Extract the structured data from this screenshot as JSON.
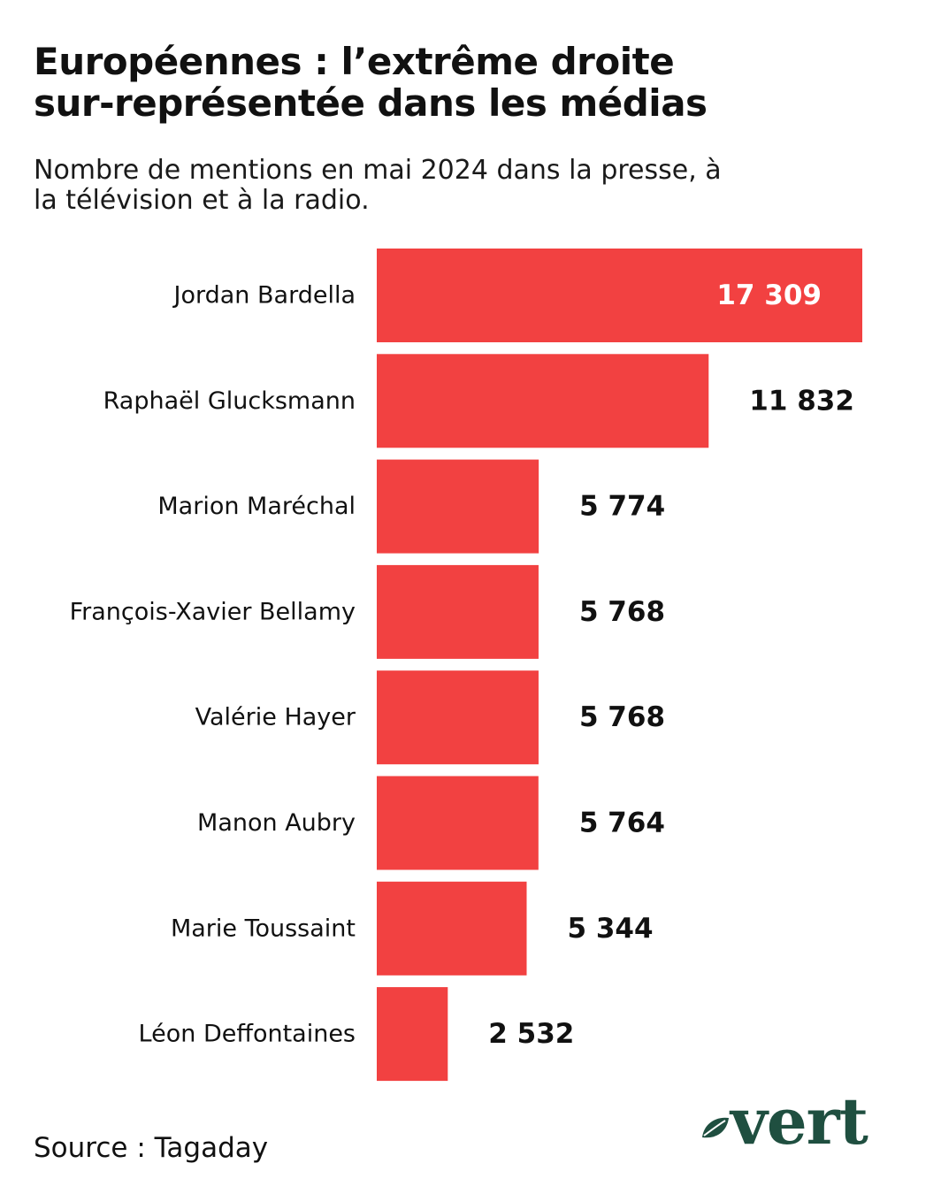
{
  "title_line1": "Européennes : l’extrême droite",
  "title_line2": "sur-représentée dans les médias",
  "subtitle_line1": "Nombre de mentions en mai 2024 dans la presse, à",
  "subtitle_line2": "la télévision et à la radio.",
  "source": "Source : Tagaday",
  "logo": "vert",
  "colors": {
    "bar": "#f24141",
    "logo": "#1f4f40",
    "text": "#111111",
    "label_inside": "#ffffff"
  },
  "chart_data": {
    "type": "bar",
    "orientation": "horizontal",
    "categories": [
      "Jordan Bardella",
      "Raphaël Glucksmann",
      "Marion Maréchal",
      "François-Xavier Bellamy",
      "Valérie Hayer",
      "Manon Aubry",
      "Marie Toussaint",
      "Léon Deffontaines"
    ],
    "values": [
      17309,
      11832,
      5774,
      5768,
      5768,
      5764,
      5344,
      2532
    ],
    "value_labels": [
      "17 309",
      "11 832",
      "5 774",
      "5 768",
      "5 768",
      "5 764",
      "5 344",
      "2 532"
    ],
    "xlim": [
      0,
      17309
    ],
    "grid": false,
    "legend": "none"
  }
}
